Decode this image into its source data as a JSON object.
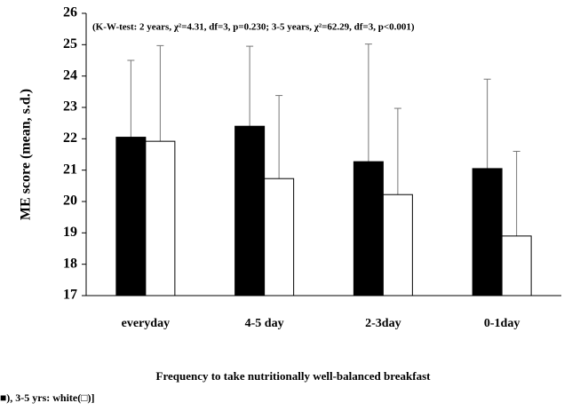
{
  "chart_data": {
    "type": "bar",
    "annotation": "(K-W-test: 2 years, χ²=4.31, df=3, p=0.230; 3-5 years, χ²=62.29, df=3, p<0.001)",
    "ylabel": "ME score (mean, s.d.)",
    "xlabel": "Frequency to take nutritionally well-balanced breakfast",
    "note": "■), 3-5 yrs: white(□)]",
    "categories": [
      "everyday",
      "4-5 day",
      "2-3day",
      "0-1day"
    ],
    "series": [
      {
        "color": "#000000",
        "values": [
          22.05,
          22.4,
          21.27,
          21.05
        ],
        "errors": [
          2.45,
          2.55,
          3.75,
          2.85
        ]
      },
      {
        "color": "#ffffff",
        "values": [
          21.92,
          20.73,
          20.22,
          18.9
        ],
        "errors": [
          3.05,
          2.65,
          2.75,
          2.7
        ]
      }
    ],
    "ylim": [
      17,
      26
    ],
    "yticks": [
      17,
      18,
      19,
      20,
      21,
      22,
      23,
      24,
      25,
      26
    ]
  }
}
